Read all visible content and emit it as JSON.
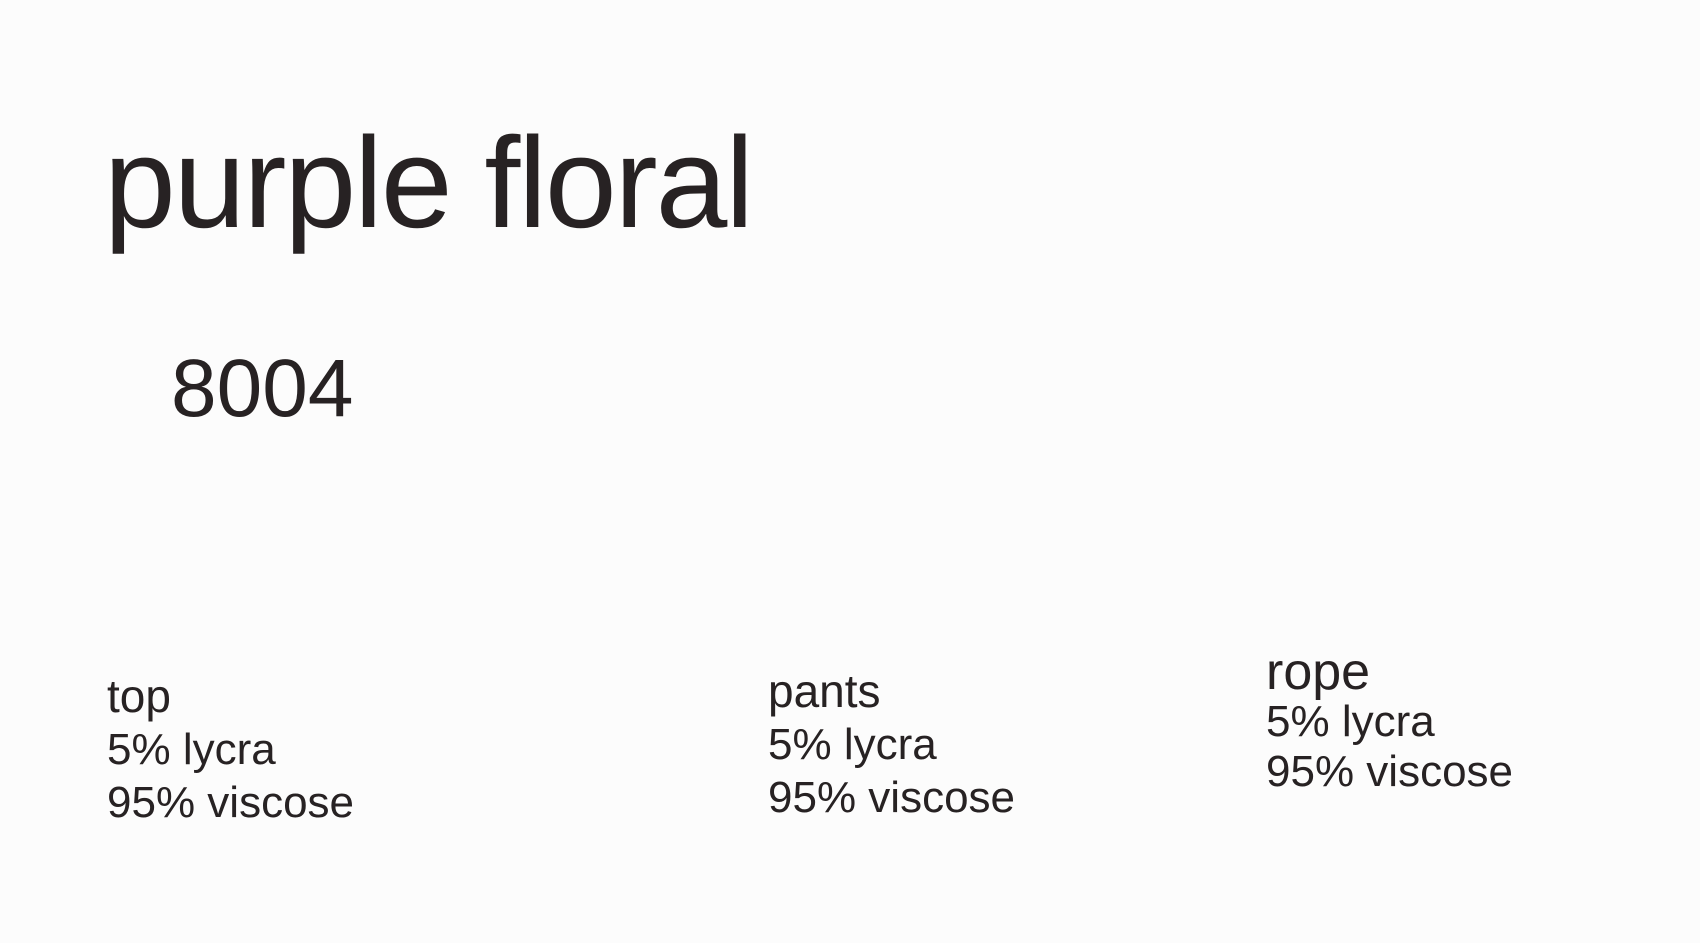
{
  "page": {
    "background_color": "#FCFCFC",
    "text_color": "#272223"
  },
  "header": {
    "fabric_name": "purple floral",
    "style_number": "8004"
  },
  "garments": [
    {
      "name": "top",
      "composition": [
        "5% lycra",
        "95% viscose"
      ]
    },
    {
      "name": "pants",
      "composition": [
        "5% lycra",
        "95% viscose"
      ]
    },
    {
      "name": "rope",
      "composition": [
        "5% lycra",
        "95% viscose"
      ]
    }
  ]
}
